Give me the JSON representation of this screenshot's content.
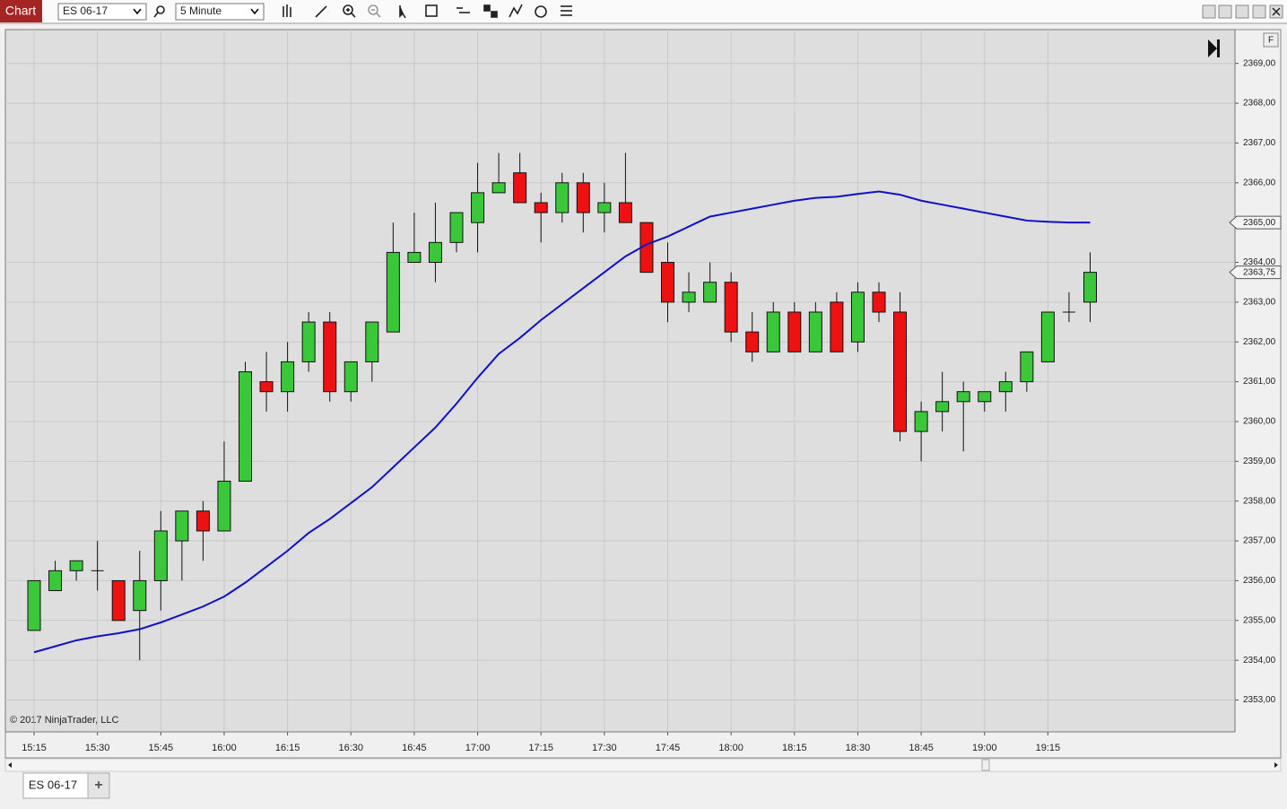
{
  "toolbar": {
    "label": "Chart",
    "instrument": "ES 06-17",
    "interval": "5 Minute"
  },
  "axis_button": "F",
  "tabs": [
    "ES 06-17",
    "+"
  ],
  "chart_data": {
    "type": "candlestick",
    "credit": "© 2017 NinjaTrader, LLC",
    "categories": [
      "15:15",
      null,
      null,
      "15:30",
      null,
      null,
      "15:45",
      null,
      null,
      "16:00",
      null,
      null,
      "16:15",
      null,
      null,
      "16:30",
      null,
      null,
      "16:45",
      null,
      null,
      "17:00",
      null,
      null,
      "17:15",
      null,
      null,
      "17:30",
      null,
      null,
      "17:45",
      null,
      null,
      "18:00",
      null,
      null,
      "18:15",
      null,
      null,
      "18:30",
      null,
      null,
      "18:45",
      null,
      null,
      "19:00",
      null,
      null,
      "19:15",
      null,
      null
    ],
    "series": [
      {
        "type": "candlestick",
        "up_color": "#3ac83a",
        "down_color": "#ee1111",
        "open": [
          2354.75,
          2355.75,
          2356.25,
          2356.25,
          2356,
          2355.25,
          2356,
          2357,
          2357.75,
          2357.25,
          2358.5,
          2361,
          2360.75,
          2361.5,
          2362.5,
          2360.75,
          2361.5,
          2362.25,
          2364,
          2364,
          2364.5,
          2365,
          2365.75,
          2366.25,
          2365.5,
          2365.25,
          2366,
          2365.25,
          2365.5,
          2365,
          2364,
          2363,
          2363,
          2363.5,
          2362.25,
          2361.75,
          2362.75,
          2361.75,
          2363,
          2362,
          2363.25,
          2362.75,
          2359.75,
          2360.25,
          2360.5,
          2360.5,
          2360.75,
          2361,
          2361.5,
          2362.75,
          2363
        ],
        "high": [
          2356,
          2356.5,
          2356.5,
          2357,
          2356,
          2356.75,
          2357.75,
          2357.75,
          2358,
          2359.5,
          2361.5,
          2361.75,
          2362,
          2362.75,
          2362.75,
          2361.5,
          2362.5,
          2365,
          2365.25,
          2365.5,
          2365.25,
          2366.5,
          2366.75,
          2366.75,
          2365.75,
          2366.25,
          2366.25,
          2366,
          2366.75,
          2365,
          2364.5,
          2363.75,
          2364,
          2363.75,
          2362.75,
          2363,
          2363,
          2363,
          2363.25,
          2363.5,
          2363.5,
          2363.25,
          2360.5,
          2361.25,
          2361,
          2360.75,
          2361.25,
          2361.75,
          2362.75,
          2363.25,
          2364.25
        ],
        "low": [
          2354.75,
          2355.75,
          2356,
          2355.75,
          2355,
          2354,
          2355.25,
          2356,
          2356.5,
          2357.25,
          2358.5,
          2360.25,
          2360.25,
          2361.25,
          2360.5,
          2360.5,
          2361,
          2362.25,
          2364,
          2363.5,
          2364.25,
          2364.25,
          2365.75,
          2365.5,
          2364.5,
          2365,
          2364.75,
          2364.75,
          2365,
          2363.75,
          2362.5,
          2362.75,
          2363,
          2362,
          2361.5,
          2361.75,
          2361.75,
          2361.75,
          2361.75,
          2361.75,
          2362.5,
          2359.5,
          2359,
          2359.75,
          2359.25,
          2360.25,
          2360.25,
          2360.75,
          2361.5,
          2362.5,
          2362.5
        ],
        "close": [
          2356,
          2356.25,
          2356.5,
          2356.25,
          2355,
          2356,
          2357.25,
          2357.75,
          2357.25,
          2358.5,
          2361.25,
          2360.75,
          2361.5,
          2362.5,
          2360.75,
          2361.5,
          2362.5,
          2364.25,
          2364.25,
          2364.5,
          2365.25,
          2365.75,
          2366,
          2365.5,
          2365.25,
          2366,
          2365.25,
          2365.5,
          2365,
          2363.75,
          2363,
          2363.25,
          2363.5,
          2362.25,
          2361.75,
          2362.75,
          2361.75,
          2362.75,
          2361.75,
          2363.25,
          2362.75,
          2359.75,
          2360.25,
          2360.5,
          2360.75,
          2360.75,
          2361,
          2361.75,
          2362.75,
          2362.75,
          2363.75
        ]
      },
      {
        "type": "line",
        "color": "#1010c8",
        "values": [
          2354.2,
          2354.35,
          2354.5,
          2354.6,
          2354.68,
          2354.78,
          2354.95,
          2355.15,
          2355.35,
          2355.6,
          2355.95,
          2356.35,
          2356.75,
          2357.2,
          2357.55,
          2357.95,
          2358.35,
          2358.85,
          2359.35,
          2359.85,
          2360.45,
          2361.1,
          2361.7,
          2362.1,
          2362.55,
          2362.95,
          2363.35,
          2363.75,
          2364.15,
          2364.45,
          2364.65,
          2364.9,
          2365.15,
          2365.25,
          2365.35,
          2365.45,
          2365.55,
          2365.62,
          2365.65,
          2365.72,
          2365.78,
          2365.7,
          2365.55,
          2365.45,
          2365.35,
          2365.25,
          2365.15,
          2365.05,
          2365.02,
          2365.0,
          2365.0
        ]
      }
    ],
    "ylim": [
      2352.2,
      2369.85
    ],
    "yticks": [
      {
        "value": 2353,
        "label": "2353,00"
      },
      {
        "value": 2354,
        "label": "2354,00"
      },
      {
        "value": 2355,
        "label": "2355,00"
      },
      {
        "value": 2356,
        "label": "2356,00"
      },
      {
        "value": 2357,
        "label": "2357,00"
      },
      {
        "value": 2358,
        "label": "2358,00"
      },
      {
        "value": 2359,
        "label": "2359,00"
      },
      {
        "value": 2360,
        "label": "2360,00"
      },
      {
        "value": 2361,
        "label": "2361,00"
      },
      {
        "value": 2362,
        "label": "2362,00"
      },
      {
        "value": 2363,
        "label": "2363,00"
      },
      {
        "value": 2364,
        "label": "2364,00"
      },
      {
        "value": 2366,
        "label": "2366,00"
      },
      {
        "value": 2367,
        "label": "2367,00"
      },
      {
        "value": 2368,
        "label": "2368,00"
      },
      {
        "value": 2369,
        "label": "2369,00"
      }
    ],
    "price_markers": [
      {
        "value": 2365,
        "label": "2365,00"
      },
      {
        "value": 2363.75,
        "label": "2363,75"
      }
    ],
    "grid": true
  }
}
